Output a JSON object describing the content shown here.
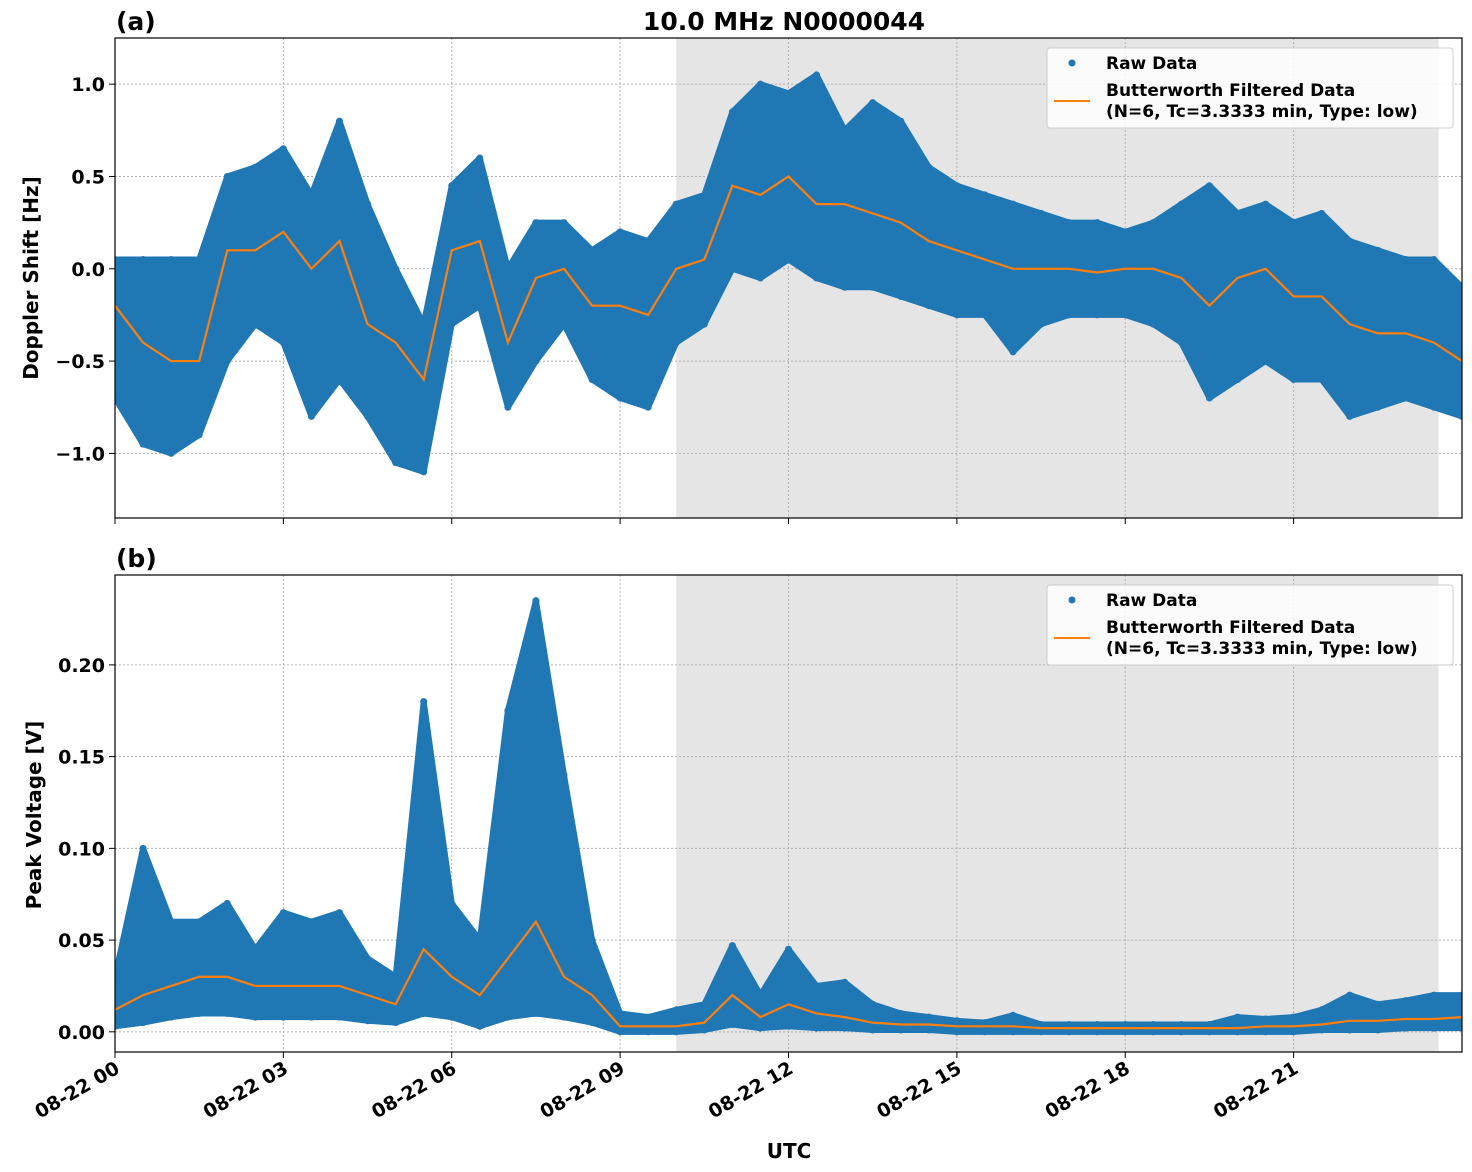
{
  "title": "10.0 MHz N0000044",
  "colors": {
    "raw": "#1f77b4",
    "filtered": "#ff7f0e",
    "shade": "#e5e5e5"
  },
  "chart_data": [
    {
      "type": "scatter",
      "panel_label": "(a)",
      "title": "10.0 MHz N0000044",
      "xlabel": "",
      "ylabel": "Doppler Shift [Hz]",
      "xlim": [
        "08-22 00:00",
        "08-23 00:00"
      ],
      "ylim": [
        -1.35,
        1.25
      ],
      "yticks": [
        "1.0",
        "0.5",
        "0.0",
        "−0.5",
        "−1.0"
      ],
      "ytick_values": [
        1.0,
        0.5,
        0.0,
        -0.5,
        -1.0
      ],
      "grid": true,
      "shaded_span": [
        "08-22 10:00",
        "08-22 23:35"
      ],
      "legend": {
        "placement": "top-right",
        "entries": [
          "Raw Data",
          "Butterworth Filtered Data\n(N=6, Tc=3.3333 min, Type: low)"
        ],
        "line1": "Butterworth Filtered Data",
        "line2": "(N=6, Tc=3.3333 min, Type: low)"
      },
      "x_hours_utc": [
        0,
        0.5,
        1,
        1.5,
        2,
        2.5,
        3,
        3.5,
        4,
        4.5,
        5,
        5.5,
        6,
        6.5,
        7,
        7.5,
        8,
        8.5,
        9,
        9.5,
        10,
        10.5,
        11,
        11.5,
        12,
        12.5,
        13,
        13.5,
        14,
        14.5,
        15,
        15.5,
        16,
        16.5,
        17,
        17.5,
        18,
        18.5,
        19,
        19.5,
        20,
        20.5,
        21,
        21.5,
        22,
        22.5,
        23,
        23.5,
        24
      ],
      "series": [
        {
          "name": "Butterworth Filtered Data",
          "kind": "line",
          "values": [
            -0.2,
            -0.4,
            -0.5,
            -0.5,
            0.1,
            0.1,
            0.2,
            0.0,
            0.15,
            -0.3,
            -0.4,
            -0.6,
            0.1,
            0.15,
            -0.4,
            -0.05,
            0.0,
            -0.2,
            -0.2,
            -0.25,
            0.0,
            0.05,
            0.45,
            0.4,
            0.5,
            0.35,
            0.35,
            0.3,
            0.25,
            0.15,
            0.1,
            0.05,
            0.0,
            0.0,
            0.0,
            -0.02,
            0.0,
            0.0,
            -0.05,
            -0.2,
            -0.05,
            0.0,
            -0.15,
            -0.15,
            -0.3,
            -0.35,
            -0.35,
            -0.4,
            -0.5
          ]
        },
        {
          "name": "Raw Data",
          "kind": "scatter-envelope",
          "min": [
            -0.7,
            -0.95,
            -1.0,
            -0.9,
            -0.5,
            -0.3,
            -0.4,
            -0.8,
            -0.6,
            -0.8,
            -1.05,
            -1.1,
            -0.3,
            -0.2,
            -0.75,
            -0.5,
            -0.3,
            -0.6,
            -0.7,
            -0.75,
            -0.4,
            -0.3,
            0.0,
            -0.05,
            0.05,
            -0.05,
            -0.1,
            -0.1,
            -0.15,
            -0.2,
            -0.25,
            -0.25,
            -0.45,
            -0.3,
            -0.25,
            -0.25,
            -0.25,
            -0.3,
            -0.4,
            -0.7,
            -0.6,
            -0.5,
            -0.6,
            -0.6,
            -0.8,
            -0.75,
            -0.7,
            -0.75,
            -0.8
          ],
          "max": [
            0.05,
            0.05,
            0.05,
            0.05,
            0.5,
            0.55,
            0.65,
            0.4,
            0.8,
            0.35,
            0.0,
            -0.3,
            0.45,
            0.6,
            0.0,
            0.25,
            0.25,
            0.1,
            0.2,
            0.15,
            0.35,
            0.4,
            0.85,
            1.0,
            0.95,
            1.05,
            0.75,
            0.9,
            0.8,
            0.55,
            0.45,
            0.4,
            0.35,
            0.3,
            0.25,
            0.25,
            0.2,
            0.25,
            0.35,
            0.45,
            0.3,
            0.35,
            0.25,
            0.3,
            0.15,
            0.1,
            0.05,
            0.05,
            -0.1
          ]
        }
      ]
    },
    {
      "type": "scatter",
      "panel_label": "(b)",
      "xlabel": "UTC",
      "ylabel": "Peak Voltage [V]",
      "xlim": [
        "08-22 00:00",
        "08-23 00:00"
      ],
      "ylim": [
        -0.011,
        0.249
      ],
      "yticks": [
        "0.20",
        "0.15",
        "0.10",
        "0.05",
        "0.00"
      ],
      "ytick_values": [
        0.2,
        0.15,
        0.1,
        0.05,
        0.0
      ],
      "xticks": [
        "08-22 00",
        "08-22 03",
        "08-22 06",
        "08-22 09",
        "08-22 12",
        "08-22 15",
        "08-22 18",
        "08-22 21"
      ],
      "xtick_hours": [
        0,
        3,
        6,
        9,
        12,
        15,
        18,
        21
      ],
      "grid": true,
      "shaded_span": [
        "08-22 10:00",
        "08-22 23:35"
      ],
      "legend": {
        "placement": "top-right",
        "entries": [
          "Raw Data",
          "Butterworth Filtered Data\n(N=6, Tc=3.3333 min, Type: low)"
        ],
        "line1": "Butterworth Filtered Data",
        "line2": "(N=6, Tc=3.3333 min, Type: low)"
      },
      "x_hours_utc": [
        0,
        0.5,
        1,
        1.5,
        2,
        2.5,
        3,
        3.5,
        4,
        4.5,
        5,
        5.5,
        6,
        6.5,
        7,
        7.5,
        8,
        8.5,
        9,
        9.5,
        10,
        10.5,
        11,
        11.5,
        12,
        12.5,
        13,
        13.5,
        14,
        14.5,
        15,
        15.5,
        16,
        16.5,
        17,
        17.5,
        18,
        18.5,
        19,
        19.5,
        20,
        20.5,
        21,
        21.5,
        22,
        22.5,
        23,
        23.5,
        24
      ],
      "series": [
        {
          "name": "Butterworth Filtered Data",
          "kind": "line",
          "values": [
            0.012,
            0.02,
            0.025,
            0.03,
            0.03,
            0.025,
            0.025,
            0.025,
            0.025,
            0.02,
            0.015,
            0.045,
            0.03,
            0.02,
            0.04,
            0.06,
            0.03,
            0.02,
            0.003,
            0.003,
            0.003,
            0.005,
            0.02,
            0.008,
            0.015,
            0.01,
            0.008,
            0.005,
            0.004,
            0.004,
            0.003,
            0.003,
            0.003,
            0.002,
            0.002,
            0.002,
            0.002,
            0.002,
            0.002,
            0.002,
            0.002,
            0.003,
            0.003,
            0.004,
            0.006,
            0.006,
            0.007,
            0.007,
            0.008
          ]
        },
        {
          "name": "Raw Data",
          "kind": "scatter-envelope",
          "min": [
            0.003,
            0.005,
            0.008,
            0.01,
            0.01,
            0.008,
            0.008,
            0.008,
            0.008,
            0.006,
            0.005,
            0.01,
            0.008,
            0.003,
            0.008,
            0.01,
            0.008,
            0.005,
            0.0,
            0.0,
            0.0,
            0.001,
            0.004,
            0.002,
            0.003,
            0.002,
            0.002,
            0.001,
            0.001,
            0.001,
            0.0,
            0.0,
            0.0,
            0.0,
            0.0,
            0.0,
            0.0,
            0.0,
            0.0,
            0.0,
            0.0,
            0.0,
            0.0,
            0.001,
            0.001,
            0.001,
            0.002,
            0.002,
            0.002
          ],
          "max": [
            0.03,
            0.1,
            0.06,
            0.06,
            0.07,
            0.045,
            0.065,
            0.06,
            0.065,
            0.04,
            0.03,
            0.18,
            0.07,
            0.05,
            0.175,
            0.235,
            0.14,
            0.05,
            0.01,
            0.008,
            0.012,
            0.015,
            0.047,
            0.02,
            0.045,
            0.025,
            0.027,
            0.015,
            0.01,
            0.008,
            0.006,
            0.005,
            0.009,
            0.004,
            0.004,
            0.004,
            0.004,
            0.004,
            0.004,
            0.004,
            0.008,
            0.007,
            0.008,
            0.012,
            0.02,
            0.015,
            0.017,
            0.02,
            0.02
          ]
        }
      ]
    }
  ]
}
